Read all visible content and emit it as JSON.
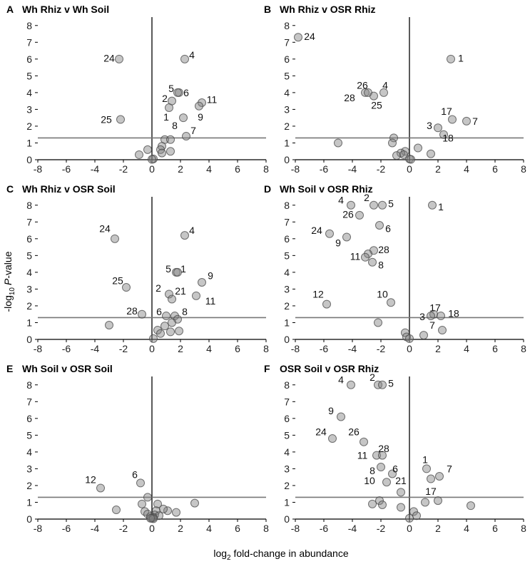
{
  "figure": {
    "xlabel_main": "log",
    "xlabel_sub": "2",
    "xlabel_rest": " fold-change in abundance",
    "ylabel_main": "-log",
    "ylabel_sub": "10",
    "ylabel_italic": "P",
    "ylabel_rest": "-value",
    "threshold": 1.3
  },
  "chart_data": [
    {
      "type": "scatter",
      "letter": "A",
      "title": "Wh Rhiz v Wh Soil",
      "xlim": [
        -8,
        8
      ],
      "ylim": [
        0,
        8.5
      ],
      "xticks": [
        -8,
        -6,
        -4,
        -2,
        0,
        2,
        4,
        6,
        8
      ],
      "yticks": [
        0,
        1,
        2,
        3,
        4,
        5,
        6,
        7,
        8
      ],
      "points": [
        [
          -2.3,
          6.0
        ],
        [
          2.3,
          6.0
        ],
        [
          1.9,
          4.0
        ],
        [
          1.8,
          4.0
        ],
        [
          1.4,
          3.5
        ],
        [
          3.5,
          3.4
        ],
        [
          1.2,
          3.1
        ],
        [
          3.3,
          3.2
        ],
        [
          2.2,
          2.5
        ],
        [
          -2.2,
          2.4
        ],
        [
          2.4,
          1.4
        ],
        [
          0.9,
          1.2
        ],
        [
          1.3,
          1.2
        ],
        [
          0.7,
          0.8
        ],
        [
          0.6,
          0.6
        ],
        [
          -0.3,
          0.6
        ],
        [
          1.3,
          0.5
        ],
        [
          -0.9,
          0.3
        ],
        [
          0.7,
          0.4
        ],
        [
          0.1,
          0.05
        ],
        [
          0.0,
          0.02
        ]
      ],
      "labels": [
        {
          "text": "24",
          "x": -3.0,
          "y": 6.05
        },
        {
          "text": "4",
          "x": 2.8,
          "y": 6.25
        },
        {
          "text": "5",
          "x": 1.35,
          "y": 4.25
        },
        {
          "text": "6",
          "x": 2.4,
          "y": 4.0
        },
        {
          "text": "2",
          "x": 0.9,
          "y": 3.65
        },
        {
          "text": "11",
          "x": 4.2,
          "y": 3.6
        },
        {
          "text": "1",
          "x": 1.0,
          "y": 2.55
        },
        {
          "text": "9",
          "x": 3.4,
          "y": 2.55
        },
        {
          "text": "8",
          "x": 1.6,
          "y": 2.05
        },
        {
          "text": "7",
          "x": 2.9,
          "y": 1.75
        },
        {
          "text": "25",
          "x": -3.2,
          "y": 2.4
        }
      ]
    },
    {
      "type": "scatter",
      "letter": "B",
      "title": "Wh Rhiz v OSR Rhiz",
      "xlim": [
        -8,
        8
      ],
      "ylim": [
        0,
        8.5
      ],
      "xticks": [
        -8,
        -6,
        -4,
        -2,
        0,
        2,
        4,
        6,
        8
      ],
      "yticks": [
        0,
        1,
        2,
        3,
        4,
        5,
        6,
        7,
        8
      ],
      "points": [
        [
          -7.8,
          7.3
        ],
        [
          2.9,
          6.0
        ],
        [
          -3.1,
          4.0
        ],
        [
          -2.9,
          4.0
        ],
        [
          -1.8,
          4.0
        ],
        [
          -2.5,
          3.8
        ],
        [
          3.0,
          2.4
        ],
        [
          4.0,
          2.3
        ],
        [
          2.0,
          1.9
        ],
        [
          2.4,
          1.5
        ],
        [
          -1.1,
          1.3
        ],
        [
          -1.2,
          1.0
        ],
        [
          -5.0,
          1.0
        ],
        [
          0.6,
          0.7
        ],
        [
          -0.3,
          0.5
        ],
        [
          -0.6,
          0.4
        ],
        [
          1.5,
          0.35
        ],
        [
          -0.9,
          0.25
        ],
        [
          -0.4,
          0.3
        ],
        [
          0.0,
          0.05
        ],
        [
          0.1,
          0.02
        ]
      ],
      "labels": [
        {
          "text": "24",
          "x": -7.0,
          "y": 7.35
        },
        {
          "text": "1",
          "x": 3.6,
          "y": 6.05
        },
        {
          "text": "26",
          "x": -3.3,
          "y": 4.45
        },
        {
          "text": "4",
          "x": -1.7,
          "y": 4.45
        },
        {
          "text": "28",
          "x": -4.2,
          "y": 3.7
        },
        {
          "text": "25",
          "x": -2.3,
          "y": 3.25
        },
        {
          "text": "17",
          "x": 2.6,
          "y": 2.9
        },
        {
          "text": "7",
          "x": 4.6,
          "y": 2.3
        },
        {
          "text": "3",
          "x": 1.4,
          "y": 2.05
        },
        {
          "text": "18",
          "x": 2.7,
          "y": 1.3
        }
      ]
    },
    {
      "type": "scatter",
      "letter": "C",
      "title": "Wh Rhiz v OSR Soil",
      "xlim": [
        -8,
        8
      ],
      "ylim": [
        0,
        8.5
      ],
      "xticks": [
        -8,
        -6,
        -4,
        -2,
        0,
        2,
        4,
        6,
        8
      ],
      "yticks": [
        0,
        1,
        2,
        3,
        4,
        5,
        6,
        7,
        8
      ],
      "points": [
        [
          -2.6,
          6.0
        ],
        [
          2.3,
          6.2
        ],
        [
          1.7,
          4.0
        ],
        [
          1.8,
          4.0
        ],
        [
          -1.8,
          3.1
        ],
        [
          3.5,
          3.4
        ],
        [
          1.2,
          2.7
        ],
        [
          1.4,
          2.4
        ],
        [
          3.1,
          2.6
        ],
        [
          -0.7,
          1.5
        ],
        [
          1.0,
          1.4
        ],
        [
          1.6,
          1.4
        ],
        [
          1.8,
          1.2
        ],
        [
          1.4,
          1.0
        ],
        [
          -3.0,
          0.85
        ],
        [
          0.9,
          0.8
        ],
        [
          0.4,
          0.55
        ],
        [
          1.3,
          0.45
        ],
        [
          1.9,
          0.5
        ],
        [
          0.6,
          0.35
        ],
        [
          0.1,
          0.05
        ]
      ],
      "labels": [
        {
          "text": "24",
          "x": -3.3,
          "y": 6.6
        },
        {
          "text": "4",
          "x": 2.8,
          "y": 6.5
        },
        {
          "text": "5",
          "x": 1.15,
          "y": 4.2
        },
        {
          "text": "1",
          "x": 2.2,
          "y": 4.2
        },
        {
          "text": "9",
          "x": 4.1,
          "y": 3.8
        },
        {
          "text": "25",
          "x": -2.4,
          "y": 3.5
        },
        {
          "text": "2",
          "x": 0.45,
          "y": 3.05
        },
        {
          "text": "21",
          "x": 2.0,
          "y": 2.9
        },
        {
          "text": "11",
          "x": 4.1,
          "y": 2.3
        },
        {
          "text": "28",
          "x": -1.4,
          "y": 1.7
        },
        {
          "text": "6",
          "x": 0.5,
          "y": 1.65
        },
        {
          "text": "8",
          "x": 2.3,
          "y": 1.65
        }
      ]
    },
    {
      "type": "scatter",
      "letter": "D",
      "title": "Wh Soil v OSR Rhiz",
      "xlim": [
        -8,
        8
      ],
      "ylim": [
        0,
        8.5
      ],
      "xticks": [
        -8,
        -6,
        -4,
        -2,
        0,
        2,
        4,
        6,
        8
      ],
      "yticks": [
        0,
        1,
        2,
        3,
        4,
        5,
        6,
        7,
        8
      ],
      "points": [
        [
          -4.1,
          8.0
        ],
        [
          -2.5,
          8.0
        ],
        [
          -1.9,
          8.0
        ],
        [
          1.6,
          8.0
        ],
        [
          -3.5,
          7.4
        ],
        [
          -2.1,
          6.8
        ],
        [
          -5.6,
          6.3
        ],
        [
          -4.4,
          6.1
        ],
        [
          -2.5,
          5.3
        ],
        [
          -2.9,
          5.1
        ],
        [
          -3.1,
          4.9
        ],
        [
          -2.6,
          4.6
        ],
        [
          -5.8,
          2.1
        ],
        [
          -1.3,
          2.2
        ],
        [
          -2.2,
          1.0
        ],
        [
          1.7,
          1.5
        ],
        [
          1.5,
          1.4
        ],
        [
          2.2,
          1.4
        ],
        [
          -0.3,
          0.4
        ],
        [
          1.0,
          0.25
        ],
        [
          2.3,
          0.55
        ],
        [
          -0.2,
          0.15
        ],
        [
          0.0,
          0.05
        ]
      ],
      "labels": [
        {
          "text": "4",
          "x": -4.8,
          "y": 8.3
        },
        {
          "text": "2",
          "x": -3.0,
          "y": 8.45
        },
        {
          "text": "5",
          "x": -1.3,
          "y": 8.1
        },
        {
          "text": "1",
          "x": 2.2,
          "y": 7.9
        },
        {
          "text": "26",
          "x": -4.3,
          "y": 7.45
        },
        {
          "text": "6",
          "x": -1.5,
          "y": 6.6
        },
        {
          "text": "24",
          "x": -6.5,
          "y": 6.5
        },
        {
          "text": "9",
          "x": -5.0,
          "y": 5.75
        },
        {
          "text": "28",
          "x": -1.8,
          "y": 5.35
        },
        {
          "text": "11",
          "x": -3.8,
          "y": 4.95
        },
        {
          "text": "8",
          "x": -2.0,
          "y": 4.45
        },
        {
          "text": "12",
          "x": -6.4,
          "y": 2.7
        },
        {
          "text": "10",
          "x": -1.9,
          "y": 2.7
        },
        {
          "text": "3",
          "x": 0.9,
          "y": 1.35
        },
        {
          "text": "17",
          "x": 1.8,
          "y": 1.9
        },
        {
          "text": "18",
          "x": 3.1,
          "y": 1.55
        },
        {
          "text": "7",
          "x": 1.6,
          "y": 0.85
        }
      ]
    },
    {
      "type": "scatter",
      "letter": "E",
      "title": "Wh Soil v OSR Soil",
      "xlim": [
        -8,
        8
      ],
      "ylim": [
        0,
        8.5
      ],
      "xticks": [
        -8,
        -6,
        -4,
        -2,
        0,
        2,
        4,
        6,
        8
      ],
      "yticks": [
        0,
        1,
        2,
        3,
        4,
        5,
        6,
        7,
        8
      ],
      "points": [
        [
          -3.6,
          1.85
        ],
        [
          -0.8,
          2.15
        ],
        [
          -0.3,
          1.3
        ],
        [
          3.0,
          0.95
        ],
        [
          0.4,
          0.9
        ],
        [
          -2.5,
          0.55
        ],
        [
          -0.7,
          0.9
        ],
        [
          -0.5,
          0.45
        ],
        [
          0.3,
          0.5
        ],
        [
          1.1,
          0.5
        ],
        [
          1.7,
          0.4
        ],
        [
          0.8,
          0.6
        ],
        [
          -0.3,
          0.3
        ],
        [
          0.2,
          0.25
        ],
        [
          0.5,
          0.2
        ],
        [
          -0.1,
          0.15
        ],
        [
          0.1,
          0.1
        ],
        [
          0.0,
          0.05
        ],
        [
          0.1,
          0.02
        ],
        [
          -0.1,
          0.05
        ]
      ],
      "labels": [
        {
          "text": "12",
          "x": -4.3,
          "y": 2.35
        },
        {
          "text": "6",
          "x": -1.2,
          "y": 2.65
        }
      ]
    },
    {
      "type": "scatter",
      "letter": "F",
      "title": "OSR Soil v OSR Rhiz",
      "xlim": [
        -8,
        8
      ],
      "ylim": [
        0,
        8.5
      ],
      "xticks": [
        -8,
        -6,
        -4,
        -2,
        0,
        2,
        4,
        6,
        8
      ],
      "yticks": [
        0,
        1,
        2,
        3,
        4,
        5,
        6,
        7,
        8
      ],
      "points": [
        [
          -4.1,
          8.0
        ],
        [
          -2.2,
          8.0
        ],
        [
          -1.9,
          8.0
        ],
        [
          -4.8,
          6.1
        ],
        [
          -5.4,
          4.8
        ],
        [
          -3.2,
          4.6
        ],
        [
          -2.3,
          3.8
        ],
        [
          -1.9,
          3.8
        ],
        [
          -2.0,
          3.1
        ],
        [
          -1.2,
          2.7
        ],
        [
          -1.6,
          2.2
        ],
        [
          -0.6,
          1.6
        ],
        [
          1.2,
          3.0
        ],
        [
          2.1,
          2.55
        ],
        [
          1.5,
          2.4
        ],
        [
          -2.1,
          1.1
        ],
        [
          2.0,
          1.1
        ],
        [
          1.1,
          1.0
        ],
        [
          -2.6,
          0.9
        ],
        [
          -1.9,
          0.85
        ],
        [
          -0.6,
          0.7
        ],
        [
          4.3,
          0.8
        ],
        [
          0.3,
          0.45
        ],
        [
          0.5,
          0.2
        ],
        [
          0.0,
          0.05
        ]
      ],
      "labels": [
        {
          "text": "4",
          "x": -4.8,
          "y": 8.3
        },
        {
          "text": "2",
          "x": -2.6,
          "y": 8.45
        },
        {
          "text": "5",
          "x": -1.3,
          "y": 8.1
        },
        {
          "text": "9",
          "x": -5.5,
          "y": 6.45
        },
        {
          "text": "24",
          "x": -6.2,
          "y": 5.2
        },
        {
          "text": "26",
          "x": -3.9,
          "y": 5.2
        },
        {
          "text": "28",
          "x": -1.8,
          "y": 4.2
        },
        {
          "text": "11",
          "x": -3.3,
          "y": 3.8
        },
        {
          "text": "1",
          "x": 1.1,
          "y": 3.55
        },
        {
          "text": "7",
          "x": 2.8,
          "y": 3.0
        },
        {
          "text": "8",
          "x": -2.6,
          "y": 2.9
        },
        {
          "text": "6",
          "x": -1.0,
          "y": 3.0
        },
        {
          "text": "10",
          "x": -2.8,
          "y": 2.3
        },
        {
          "text": "21",
          "x": -0.6,
          "y": 2.3
        },
        {
          "text": "17",
          "x": 1.5,
          "y": 1.65
        }
      ]
    }
  ]
}
